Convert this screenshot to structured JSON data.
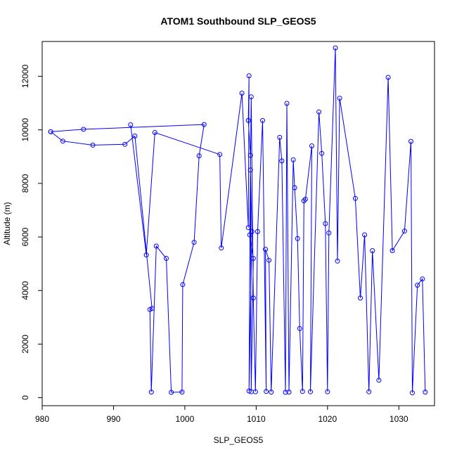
{
  "chart_data": {
    "type": "line",
    "title": "ATOM1 Southbound SLP_GEOS5",
    "xlabel": "SLP_GEOS5",
    "ylabel": "Altitude (m)",
    "xlim": [
      980,
      1035
    ],
    "ylim": [
      -300,
      13300
    ],
    "xticks": [
      980,
      990,
      1000,
      1010,
      1020,
      1030
    ],
    "yticks": [
      0,
      2000,
      4000,
      6000,
      8000,
      10000,
      12000
    ],
    "grid": false,
    "color": "#0000ff",
    "markers": "open-circle",
    "series": [
      {
        "x": [
          981.2,
          982.9,
          987.1,
          991.6,
          993.0,
          995.4,
          995.1,
          995.3,
          996.0,
          997.4,
          998.1,
          999.6,
          999.7,
          1001.3,
          1002.0,
          1002.7,
          985.8,
          981.2
        ],
        "y": [
          9930,
          9580,
          9430,
          9460,
          9770,
          3330,
          3290,
          210,
          5660,
          5200,
          200,
          210,
          4220,
          5800,
          9030,
          10200,
          10020,
          9930
        ]
      },
      {
        "x": [
          992.4,
          994.6,
          995.8,
          1004.9,
          1005.1,
          1008.0,
          1008.9,
          1009.0,
          1008.9,
          1009.2,
          1009.0,
          1009.4,
          1009.2,
          1009.3,
          1009.6,
          1009.1,
          1009.3,
          1009.6,
          1009.9,
          1010.2,
          1010.9,
          1011.4,
          1011.3,
          1011.8,
          1012.1,
          1013.3,
          1013.6,
          1014.1,
          1014.3,
          1014.6,
          1015.2,
          1015.4,
          1015.8,
          1016.1,
          1016.5,
          1016.7,
          1016.9,
          1017.8,
          1017.6,
          1018.8,
          1019.2,
          1019.7,
          1020.0,
          1020.2,
          1021.1,
          1021.4,
          1021.7,
          1023.9,
          1024.6,
          1025.2,
          1025.8,
          1026.3,
          1027.2,
          1028.5,
          1029.1,
          1030.8,
          1031.7,
          1031.9,
          1032.6,
          1033.3,
          1033.7
        ],
        "y": [
          10190,
          5330,
          9900,
          9080,
          5590,
          11370,
          6350,
          12020,
          10350,
          9050,
          250,
          6200,
          8500,
          220,
          5200,
          6080,
          11230,
          3720,
          220,
          6200,
          10350,
          230,
          5540,
          5130,
          210,
          9720,
          8840,
          200,
          10990,
          210,
          8880,
          7840,
          5940,
          2580,
          230,
          7350,
          7410,
          9400,
          220,
          10670,
          9120,
          6500,
          220,
          6150,
          13060,
          5100,
          11180,
          7440,
          3720,
          6080,
          220,
          5490,
          650,
          11960,
          5490,
          6220,
          9570,
          180,
          4200,
          4430,
          210
        ]
      }
    ]
  }
}
